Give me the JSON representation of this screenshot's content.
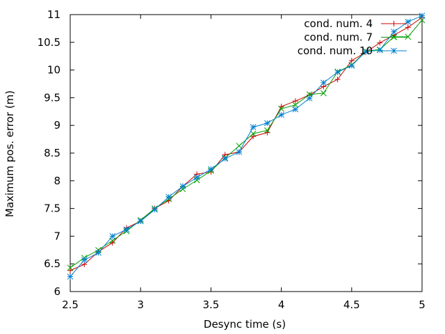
{
  "chart_data": {
    "type": "line",
    "title": "",
    "xlabel": "Desync time (s)",
    "ylabel": "Maximum pos. error (m)",
    "xlim": [
      2.5,
      5
    ],
    "ylim": [
      6,
      11
    ],
    "xticks": [
      2.5,
      3,
      3.5,
      4,
      4.5,
      5
    ],
    "xtick_labels": [
      "2.5",
      "3",
      "3.5",
      "4",
      "4.5",
      "5"
    ],
    "yticks": [
      6,
      6.5,
      7,
      7.5,
      8,
      8.5,
      9,
      9.5,
      10,
      10.5,
      11
    ],
    "ytick_labels": [
      "6",
      "6.5",
      "7",
      "7.5",
      "8",
      "8.5",
      "9",
      "9.5",
      "10",
      "10.5",
      "11"
    ],
    "grid": false,
    "legend_position": "top-right",
    "x": [
      2.5,
      2.6,
      2.7,
      2.8,
      2.9,
      3.0,
      3.1,
      3.2,
      3.3,
      3.4,
      3.5,
      3.6,
      3.7,
      3.8,
      3.9,
      4.0,
      4.1,
      4.2,
      4.3,
      4.4,
      4.5,
      4.6,
      4.7,
      4.8,
      4.9,
      5.0
    ],
    "series": [
      {
        "name": "cond. num. 4",
        "color": "#cc0000",
        "marker": "plus",
        "values": [
          6.38,
          6.49,
          6.72,
          6.88,
          7.15,
          7.27,
          7.5,
          7.64,
          7.9,
          8.12,
          8.16,
          8.47,
          8.52,
          8.8,
          8.87,
          9.34,
          9.44,
          9.55,
          9.7,
          9.83,
          10.17,
          10.32,
          10.49,
          10.63,
          10.77,
          10.95
        ]
      },
      {
        "name": "cond. num. 7",
        "color": "#00a000",
        "marker": "cross",
        "values": [
          6.43,
          6.61,
          6.75,
          6.92,
          7.09,
          7.29,
          7.5,
          7.67,
          7.85,
          8.01,
          8.18,
          8.41,
          8.63,
          8.85,
          8.91,
          9.3,
          9.37,
          9.56,
          9.58,
          9.97,
          10.09,
          10.34,
          10.37,
          10.6,
          10.6,
          10.9
        ]
      },
      {
        "name": "cond. num. 10",
        "color": "#0080d0",
        "marker": "star",
        "values": [
          6.27,
          6.57,
          6.7,
          7.0,
          7.12,
          7.27,
          7.48,
          7.71,
          7.9,
          8.06,
          8.21,
          8.4,
          8.52,
          8.97,
          9.04,
          9.19,
          9.29,
          9.49,
          9.77,
          9.96,
          10.08,
          10.33,
          10.36,
          10.69,
          10.87,
          10.98
        ]
      }
    ]
  }
}
